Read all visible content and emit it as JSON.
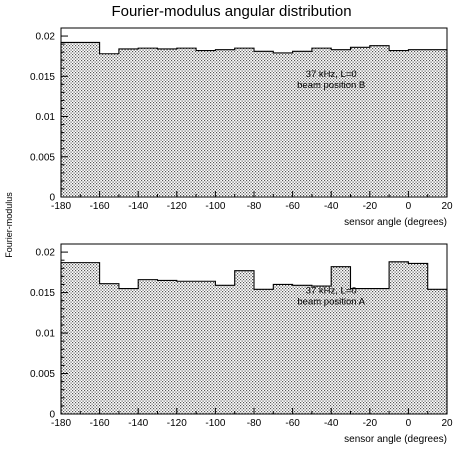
{
  "figure": {
    "title": "Fourier-modulus angular distribution",
    "ylabel": "Fourier-modulus"
  },
  "chart_data": [
    {
      "type": "bar",
      "xlabel": "sensor angle (degrees)",
      "annotation_lines": [
        "37 kHz, L=0",
        "beam position B"
      ],
      "xlim": [
        -180,
        20
      ],
      "ylim": [
        0,
        0.021
      ],
      "xticks": [
        -180,
        -160,
        -140,
        -120,
        -100,
        -80,
        -60,
        -40,
        -20,
        0,
        20
      ],
      "yticks": [
        0,
        0.005,
        0.01,
        0.015,
        0.02
      ],
      "ytick_labels": [
        "0",
        "0.005",
        "0.01",
        "0.015",
        "0.02"
      ],
      "bin_edges": [
        -180,
        -170,
        -160,
        -150,
        -140,
        -130,
        -120,
        -110,
        -100,
        -90,
        -80,
        -70,
        -60,
        -50,
        -40,
        -30,
        -20,
        -10,
        0,
        10,
        20
      ],
      "values": [
        0.0192,
        0.0192,
        0.0178,
        0.0184,
        0.0185,
        0.0184,
        0.0185,
        0.0182,
        0.0183,
        0.0185,
        0.0181,
        0.0179,
        0.0181,
        0.0185,
        0.0183,
        0.0186,
        0.0188,
        0.0182,
        0.0183,
        0.0183
      ]
    },
    {
      "type": "bar",
      "xlabel": "sensor angle (degrees)",
      "annotation_lines": [
        "37 kHz, L=0",
        "beam position A"
      ],
      "xlim": [
        -180,
        20
      ],
      "ylim": [
        0,
        0.021
      ],
      "xticks": [
        -180,
        -160,
        -140,
        -120,
        -100,
        -80,
        -60,
        -40,
        -20,
        0,
        20
      ],
      "yticks": [
        0,
        0.005,
        0.01,
        0.015,
        0.02
      ],
      "ytick_labels": [
        "0",
        "0.005",
        "0.01",
        "0.015",
        "0.02"
      ],
      "bin_edges": [
        -180,
        -170,
        -160,
        -150,
        -140,
        -130,
        -120,
        -110,
        -100,
        -90,
        -80,
        -70,
        -60,
        -50,
        -40,
        -30,
        -20,
        -10,
        0,
        10,
        20
      ],
      "values": [
        0.0187,
        0.0187,
        0.0161,
        0.0155,
        0.0166,
        0.0165,
        0.0164,
        0.0164,
        0.0159,
        0.0177,
        0.0154,
        0.016,
        0.0159,
        0.0158,
        0.0182,
        0.0155,
        0.0155,
        0.0188,
        0.0186,
        0.0154
      ]
    }
  ]
}
